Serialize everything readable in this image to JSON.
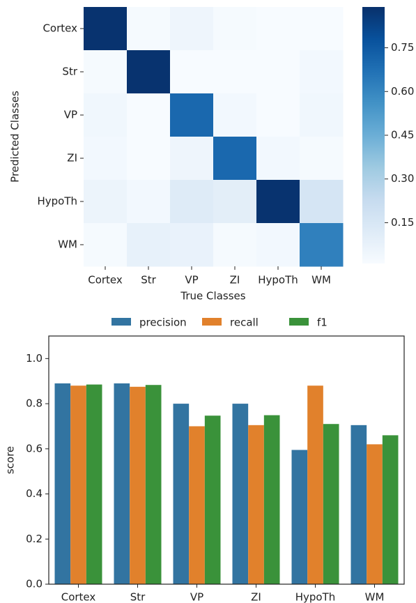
{
  "chart_data": [
    {
      "type": "heatmap",
      "xlabel": "True Classes",
      "ylabel": "Predicted Classes",
      "categories": [
        "Cortex",
        "Str",
        "VP",
        "ZI",
        "HypoTh",
        "WM"
      ],
      "row_categories": [
        "Cortex",
        "Str",
        "VP",
        "ZI",
        "HypoTh",
        "WM"
      ],
      "values": [
        [
          0.88,
          0.02,
          0.05,
          0.02,
          0.01,
          0.01
        ],
        [
          0.02,
          0.88,
          0.01,
          0.01,
          0.01,
          0.03
        ],
        [
          0.04,
          0.01,
          0.7,
          0.03,
          0.01,
          0.04
        ],
        [
          0.03,
          0.01,
          0.05,
          0.7,
          0.03,
          0.02
        ],
        [
          0.06,
          0.03,
          0.12,
          0.1,
          0.88,
          0.16
        ],
        [
          0.02,
          0.08,
          0.07,
          0.02,
          0.03,
          0.62
        ]
      ],
      "colormap": "Blues",
      "zlim": [
        0.01,
        0.89
      ],
      "zticks": [
        0.15,
        {
          "value": 0.3,
          "label": "0.30"
        },
        0.45,
        {
          "value": 0.6,
          "label": "0.60"
        },
        0.75
      ]
    },
    {
      "type": "bar",
      "ylabel": "score",
      "categories": [
        "Cortex",
        "Str",
        "VP",
        "ZI",
        "HypoTh",
        "WM"
      ],
      "series": [
        {
          "name": "precision",
          "color": "#3274a1",
          "values": [
            0.89,
            0.89,
            0.8,
            0.8,
            0.595,
            0.705
          ]
        },
        {
          "name": "recall",
          "color": "#e1812c",
          "values": [
            0.88,
            0.875,
            0.7,
            0.705,
            0.88,
            0.62
          ]
        },
        {
          "name": "f1",
          "color": "#3a923a",
          "values": [
            0.885,
            0.883,
            0.747,
            0.749,
            0.71,
            0.66
          ]
        }
      ],
      "ylim": [
        0,
        1.1
      ],
      "yticks": [
        {
          "value": 0,
          "label": "0.0"
        },
        0.2,
        0.4,
        0.6,
        0.8,
        {
          "value": 1,
          "label": "1.0"
        }
      ],
      "legend": "top"
    }
  ]
}
